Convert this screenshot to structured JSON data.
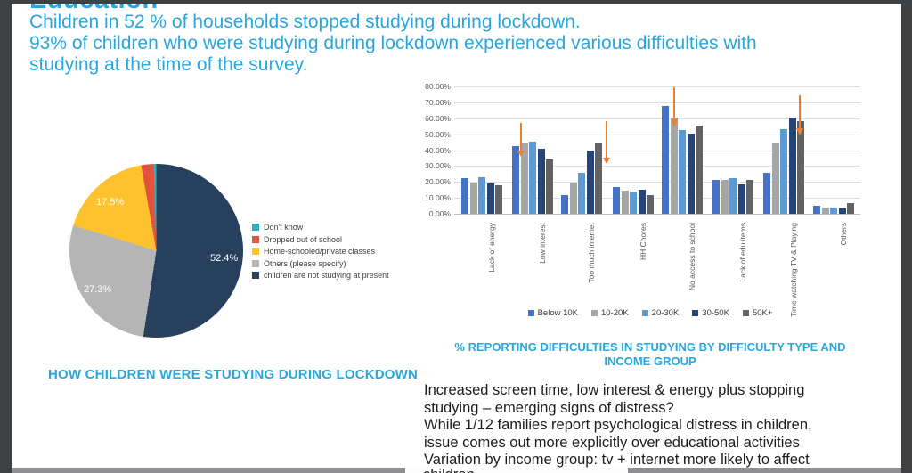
{
  "header": {
    "title": "Education",
    "accent_color": "#29a6dc",
    "lines": [
      "Children in 52 % of households stopped studying during lockdown.",
      "93% of children who were studying during lockdown experienced various difficulties with",
      "studying at the time of the survey."
    ]
  },
  "bar_chart": {
    "title_lines": [
      "% REPORTING DIFFICULTIES IN STUDYING BY DIFFICULTY TYPE AND",
      "INCOME GROUP"
    ],
    "arrow_color": "#ed7d31",
    "arrows_on": [
      "Low interest",
      "Too much internet",
      "No access to school",
      "Time watching TV & Playing"
    ]
  },
  "notes": {
    "lines": [
      "Increased screen time, low interest & energy plus stopping",
      "studying – emerging signs of distress?",
      "While 1/12 families report psychological distress in children,",
      "issue comes out more explicitly over educational activities",
      "Variation by income group: tv + internet more likely to affect"
    ],
    "clipped_line": "children"
  },
  "chart_data": [
    {
      "type": "pie",
      "title": "HOW CHILDREN WERE STUDYING DURING LOCKDOWN",
      "labels": [
        "Don't know",
        "Dropped out of school",
        "Home-schooled/private classes",
        "Others (please specify)",
        "children are not studying at present"
      ],
      "values": [
        0.5,
        2.3,
        17.5,
        27.3,
        52.4
      ],
      "colors": [
        "#2bb3bb",
        "#e2533f",
        "#fdc22e",
        "#b5b5b5",
        "#26405d"
      ],
      "shown_labels": [
        "17.5%",
        "27.3%",
        "52.4%"
      ],
      "legend_position": "right",
      "start_angle": "top, clockwise, largest slice first"
    },
    {
      "type": "bar",
      "title": "% REPORTING DIFFICULTIES IN STUDYING BY DIFFICULTY TYPE AND INCOME GROUP",
      "categories": [
        "Lack of energy",
        "Low interest",
        "Too much internet",
        "HH Chores",
        "No access to school",
        "Lack of edu items",
        "Time watching TV & Playing",
        "Others"
      ],
      "series": [
        {
          "name": "Below 10K",
          "color": "#4472c4",
          "values": [
            22.5,
            42.5,
            12,
            17,
            67.5,
            21.5,
            26,
            5
          ]
        },
        {
          "name": "10-20K",
          "color": "#a6a6a6",
          "values": [
            19.5,
            44.5,
            19,
            14.5,
            60.5,
            21,
            44.5,
            4
          ]
        },
        {
          "name": "20-30K",
          "color": "#5b9bd5",
          "values": [
            23,
            45.5,
            26,
            14,
            52.5,
            22.5,
            53,
            4
          ]
        },
        {
          "name": "30-50K",
          "color": "#264478",
          "values": [
            19,
            41,
            39.5,
            15,
            50.5,
            18.5,
            60.5,
            3.5
          ]
        },
        {
          "name": "50K+",
          "color": "#636363",
          "values": [
            18,
            34,
            44.5,
            12,
            55.5,
            21,
            58,
            7
          ]
        }
      ],
      "ylim": [
        0,
        80
      ],
      "ytick_step": 10,
      "ytick_format": "0.00%",
      "grid": true,
      "legend_position": "bottom"
    }
  ]
}
